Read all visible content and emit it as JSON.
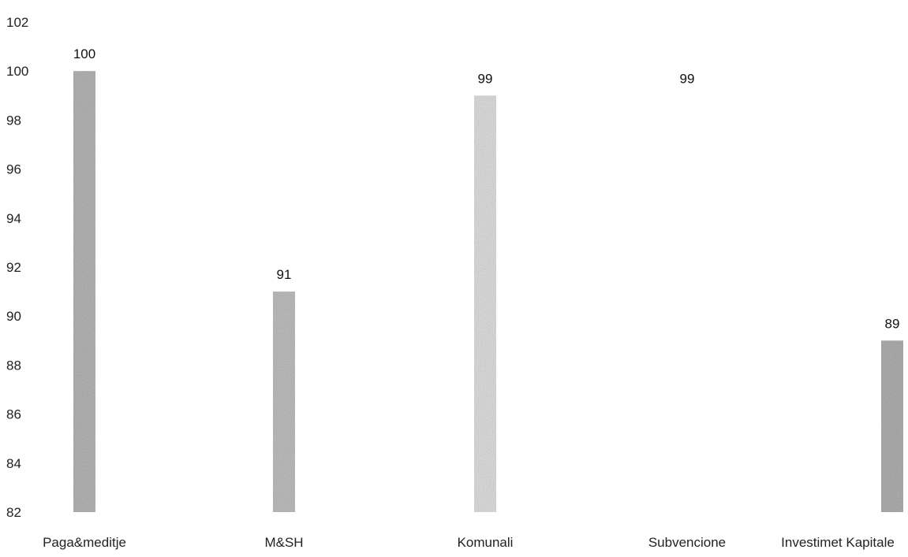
{
  "chart_data": {
    "type": "bar",
    "categories": [
      "Paga&meditje",
      "M&SH",
      "Komunali",
      "Subvencione",
      "Investimet Kapitale"
    ],
    "values": [
      100,
      91,
      99,
      99,
      89
    ],
    "data_labels": [
      "100",
      "91",
      "99",
      "99",
      "89"
    ],
    "ylim": [
      82,
      102
    ],
    "yticks": [
      82,
      84,
      86,
      88,
      90,
      92,
      94,
      96,
      98,
      100,
      102
    ],
    "ytick_labels": [
      "82",
      "84",
      "86",
      "88",
      "90",
      "92",
      "94",
      "96",
      "98",
      "100",
      "102"
    ],
    "gridlines": false,
    "legend": "none"
  },
  "colors": {
    "bar_fills": [
      "#b9b9b9",
      "#c3c3c3",
      "#e3e3e3",
      "#ffffff",
      "#b4b4b4"
    ],
    "text": "#222222"
  }
}
